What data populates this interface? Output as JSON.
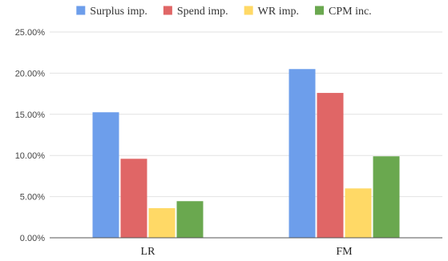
{
  "chart_data": {
    "type": "bar",
    "title": "",
    "xlabel": "",
    "ylabel": "",
    "categories": [
      "LR",
      "FM"
    ],
    "series": [
      {
        "name": "Surplus imp.",
        "color": "#6d9eeb",
        "values": [
          15.25,
          20.5
        ]
      },
      {
        "name": "Spend imp.",
        "color": "#e06666",
        "values": [
          9.6,
          17.6
        ]
      },
      {
        "name": "WR imp.",
        "color": "#ffd966",
        "values": [
          3.6,
          6.0
        ]
      },
      {
        "name": "CPM inc.",
        "color": "#6aa84f",
        "values": [
          4.45,
          9.9
        ]
      }
    ],
    "ylim": [
      0,
      25
    ],
    "yticks": [
      0,
      5,
      10,
      15,
      20,
      25
    ],
    "ytick_labels": [
      "0.00%",
      "5.00%",
      "10.00%",
      "15.00%",
      "20.00%",
      "25.00%"
    ],
    "grid": true,
    "legend_position": "top"
  }
}
